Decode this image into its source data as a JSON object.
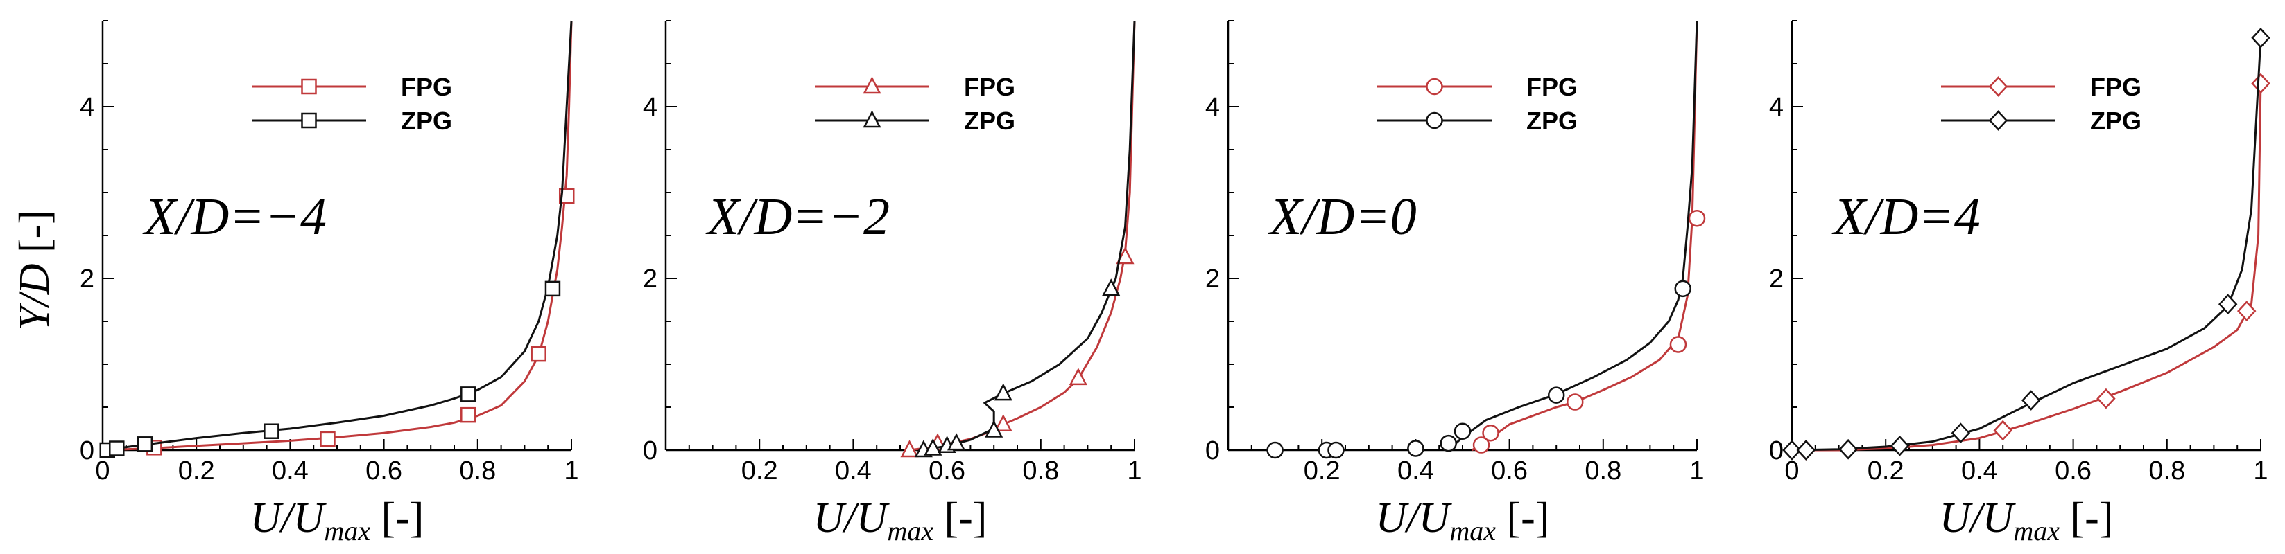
{
  "figure": {
    "y_axis_title": {
      "var": "Y/D",
      "unit": " [-]"
    },
    "x_axis_title": {
      "var": "U/U",
      "sub": "max",
      "unit": " [-]"
    }
  },
  "chart_data": [
    {
      "type": "line",
      "annotation": "X/D=−4",
      "xlim": [
        0,
        1
      ],
      "ylim": [
        0,
        5
      ],
      "xticks": [
        0,
        0.2,
        0.4,
        0.6,
        0.8,
        1
      ],
      "xtick_labels": [
        "0",
        "0.2",
        "0.4",
        "0.6",
        "0.8",
        "1"
      ],
      "yticks": [
        0,
        2,
        4
      ],
      "ytick_labels": [
        "0",
        "2",
        "4"
      ],
      "ylabel": "Y/D [-]",
      "xlabel": "U/Umax [-]",
      "legend_position": "top-center",
      "marker": "square",
      "series": [
        {
          "name": "FPG",
          "color": "#c0393b",
          "x": [
            0,
            0.1,
            0.2,
            0.3,
            0.4,
            0.5,
            0.6,
            0.7,
            0.75,
            0.8,
            0.85,
            0.9,
            0.93,
            0.95,
            0.97,
            0.98,
            0.99,
            0.995,
            1
          ],
          "y": [
            0,
            0.02,
            0.05,
            0.08,
            0.11,
            0.15,
            0.2,
            0.27,
            0.32,
            0.4,
            0.52,
            0.8,
            1.1,
            1.5,
            2.1,
            2.6,
            3.2,
            4,
            5
          ],
          "markers_x": [
            0.11,
            0.48,
            0.78,
            0.93,
            0.99
          ],
          "markers_y": [
            0.03,
            0.13,
            0.41,
            1.12,
            2.96
          ]
        },
        {
          "name": "ZPG",
          "color": "#111111",
          "x": [
            0,
            0.1,
            0.2,
            0.3,
            0.4,
            0.5,
            0.6,
            0.7,
            0.75,
            0.8,
            0.85,
            0.9,
            0.93,
            0.95,
            0.97,
            0.98,
            0.99,
            1
          ],
          "y": [
            0,
            0.07,
            0.14,
            0.2,
            0.25,
            0.32,
            0.4,
            0.52,
            0.6,
            0.7,
            0.85,
            1.15,
            1.5,
            1.9,
            2.5,
            3,
            4,
            5
          ],
          "markers_x": [
            0.01,
            0.03,
            0.09,
            0.36,
            0.78,
            0.96
          ],
          "markers_y": [
            0,
            0.02,
            0.07,
            0.22,
            0.65,
            1.88
          ]
        }
      ]
    },
    {
      "type": "line",
      "annotation": "X/D=−2",
      "xlim": [
        0,
        1
      ],
      "ylim": [
        0,
        5
      ],
      "xticks": [
        0.2,
        0.4,
        0.6,
        0.8,
        1
      ],
      "xtick_labels": [
        "0.2",
        "0.4",
        "0.6",
        "0.8",
        "1"
      ],
      "yticks": [
        0,
        2,
        4
      ],
      "ytick_labels": [
        "0",
        "2",
        "4"
      ],
      "xlabel": "U/Umax [-]",
      "legend_position": "top-center",
      "marker": "triangle",
      "series": [
        {
          "name": "FPG",
          "color": "#c0393b",
          "x": [
            0.52,
            0.56,
            0.6,
            0.65,
            0.7,
            0.72,
            0.75,
            0.8,
            0.85,
            0.88,
            0.92,
            0.95,
            0.97,
            0.98,
            0.99,
            1
          ],
          "y": [
            0,
            0.03,
            0.07,
            0.13,
            0.23,
            0.3,
            0.37,
            0.5,
            0.67,
            0.83,
            1.2,
            1.6,
            2,
            2.3,
            3,
            5
          ],
          "markers_x": [
            0.52,
            0.58,
            0.72,
            0.88,
            0.98
          ],
          "markers_y": [
            0,
            0.08,
            0.3,
            0.84,
            2.25
          ]
        },
        {
          "name": "ZPG",
          "color": "#111111",
          "x": [
            0.55,
            0.6,
            0.65,
            0.7,
            0.7,
            0.68,
            0.72,
            0.78,
            0.84,
            0.9,
            0.93,
            0.96,
            0.98,
            0.99,
            1
          ],
          "y": [
            0,
            0.05,
            0.12,
            0.25,
            0.45,
            0.55,
            0.66,
            0.8,
            1,
            1.3,
            1.6,
            2,
            2.6,
            3.5,
            5
          ],
          "markers_x": [
            0.55,
            0.57,
            0.6,
            0.62,
            0.7,
            0.72,
            0.95
          ],
          "markers_y": [
            0,
            0.02,
            0.05,
            0.08,
            0.23,
            0.66,
            1.88
          ]
        }
      ]
    },
    {
      "type": "line",
      "annotation": "X/D=0",
      "xlim": [
        0,
        1
      ],
      "ylim": [
        0,
        5
      ],
      "xticks": [
        0.2,
        0.4,
        0.6,
        0.8,
        1
      ],
      "xtick_labels": [
        "0.2",
        "0.4",
        "0.6",
        "0.8",
        "1"
      ],
      "yticks": [
        0,
        2,
        4
      ],
      "ytick_labels": [
        "0",
        "2",
        "4"
      ],
      "xlabel": "U/Umax [-]",
      "legend_position": "top-center",
      "marker": "circle",
      "series": [
        {
          "name": "FPG",
          "color": "#c0393b",
          "x": [
            0.52,
            0.55,
            0.6,
            0.7,
            0.74,
            0.8,
            0.86,
            0.92,
            0.96,
            0.98,
            0.99,
            1
          ],
          "y": [
            0,
            0.1,
            0.3,
            0.5,
            0.56,
            0.7,
            0.85,
            1.05,
            1.3,
            1.8,
            2.7,
            5
          ],
          "markers_x": [
            0.54,
            0.56,
            0.74,
            0.96,
            1.0
          ],
          "markers_y": [
            0.06,
            0.2,
            0.56,
            1.23,
            2.7
          ]
        },
        {
          "name": "ZPG",
          "color": "#111111",
          "x": [
            0.47,
            0.5,
            0.55,
            0.62,
            0.7,
            0.78,
            0.85,
            0.9,
            0.94,
            0.96,
            0.97,
            0.98,
            0.99,
            1
          ],
          "y": [
            0,
            0.15,
            0.35,
            0.5,
            0.65,
            0.85,
            1.05,
            1.25,
            1.5,
            1.75,
            2,
            2.6,
            3.3,
            5
          ],
          "markers_x": [
            0.1,
            0.21,
            0.23,
            0.4,
            0.47,
            0.5,
            0.7,
            0.97
          ],
          "markers_y": [
            0,
            0,
            0,
            0.02,
            0.08,
            0.22,
            0.64,
            1.88
          ]
        }
      ]
    },
    {
      "type": "line",
      "annotation": "X/D=4",
      "xlim": [
        0,
        1
      ],
      "ylim": [
        0,
        5
      ],
      "xticks": [
        0,
        0.2,
        0.4,
        0.6,
        0.8,
        1
      ],
      "xtick_labels": [
        "0",
        "0.2",
        "0.4",
        "0.6",
        "0.8",
        "1"
      ],
      "yticks": [
        0,
        2,
        4
      ],
      "ytick_labels": [
        "0",
        "2",
        "4"
      ],
      "xlabel": "U/Umax [-]",
      "legend_position": "top-center",
      "marker": "diamond",
      "series": [
        {
          "name": "FPG",
          "color": "#c0393b",
          "x": [
            0,
            0.1,
            0.2,
            0.3,
            0.4,
            0.5,
            0.6,
            0.7,
            0.8,
            0.9,
            0.95,
            0.98,
            0.995,
            1
          ],
          "y": [
            0,
            0,
            0.02,
            0.06,
            0.14,
            0.3,
            0.48,
            0.68,
            0.9,
            1.2,
            1.4,
            1.7,
            2.5,
            4.3
          ],
          "markers_x": [
            0.03,
            0.45,
            0.67,
            0.97,
            1.0
          ],
          "markers_y": [
            0,
            0.23,
            0.6,
            1.62,
            4.27
          ]
        },
        {
          "name": "ZPG",
          "color": "#111111",
          "x": [
            0,
            0.1,
            0.2,
            0.3,
            0.4,
            0.5,
            0.6,
            0.7,
            0.8,
            0.88,
            0.93,
            0.96,
            0.98,
            0.99,
            1
          ],
          "y": [
            0,
            0.01,
            0.04,
            0.1,
            0.25,
            0.52,
            0.78,
            0.98,
            1.18,
            1.42,
            1.68,
            2.1,
            2.8,
            3.8,
            4.8
          ],
          "markers_x": [
            0.0,
            0.03,
            0.12,
            0.23,
            0.36,
            0.51,
            0.93,
            1.0
          ],
          "markers_y": [
            0,
            0,
            0.01,
            0.05,
            0.2,
            0.58,
            1.7,
            4.8
          ]
        }
      ]
    }
  ]
}
